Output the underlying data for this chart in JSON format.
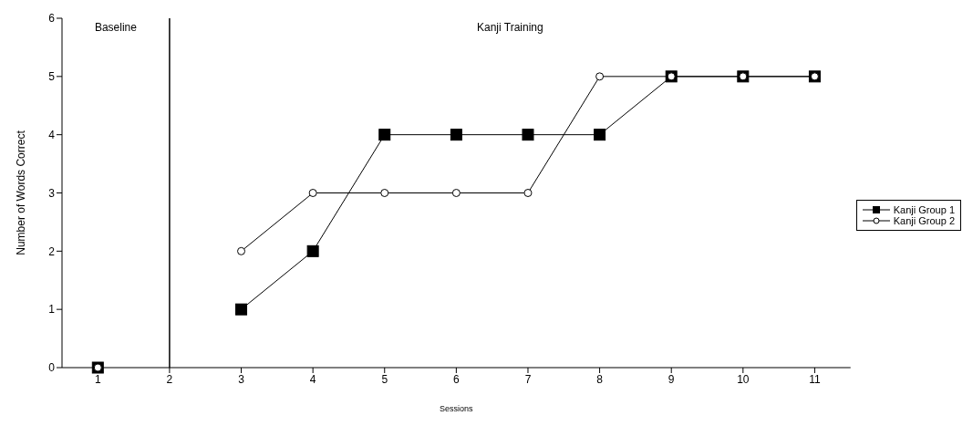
{
  "chart_data": {
    "type": "line",
    "xlabel": "Sessions",
    "ylabel": "Number of Words Correct",
    "x": [
      1,
      2,
      3,
      4,
      5,
      6,
      7,
      8,
      9,
      10,
      11
    ],
    "xlim": [
      0.5,
      11.5
    ],
    "xticks": [
      1,
      2,
      3,
      4,
      5,
      6,
      7,
      8,
      9,
      10,
      11
    ],
    "ylim": [
      0,
      6
    ],
    "yticks": [
      0,
      1,
      2,
      3,
      4,
      5,
      6
    ],
    "series": [
      {
        "name": "Kanji Group 1",
        "color": "#000000",
        "marker": "square",
        "values": [
          0,
          null,
          1,
          2,
          4,
          4,
          4,
          4,
          5,
          5,
          5
        ]
      },
      {
        "name": "Kanji Group 2",
        "color": "#000000",
        "marker": "circle",
        "values": [
          0,
          null,
          2,
          3,
          3,
          3,
          3,
          5,
          5,
          5,
          5
        ]
      }
    ],
    "ref_lines": [
      {
        "axis": "x",
        "value": 2,
        "color": "#000000"
      }
    ],
    "annotations": [
      "Baseline",
      "Kanji Training"
    ],
    "legend": "right",
    "grid": false
  }
}
